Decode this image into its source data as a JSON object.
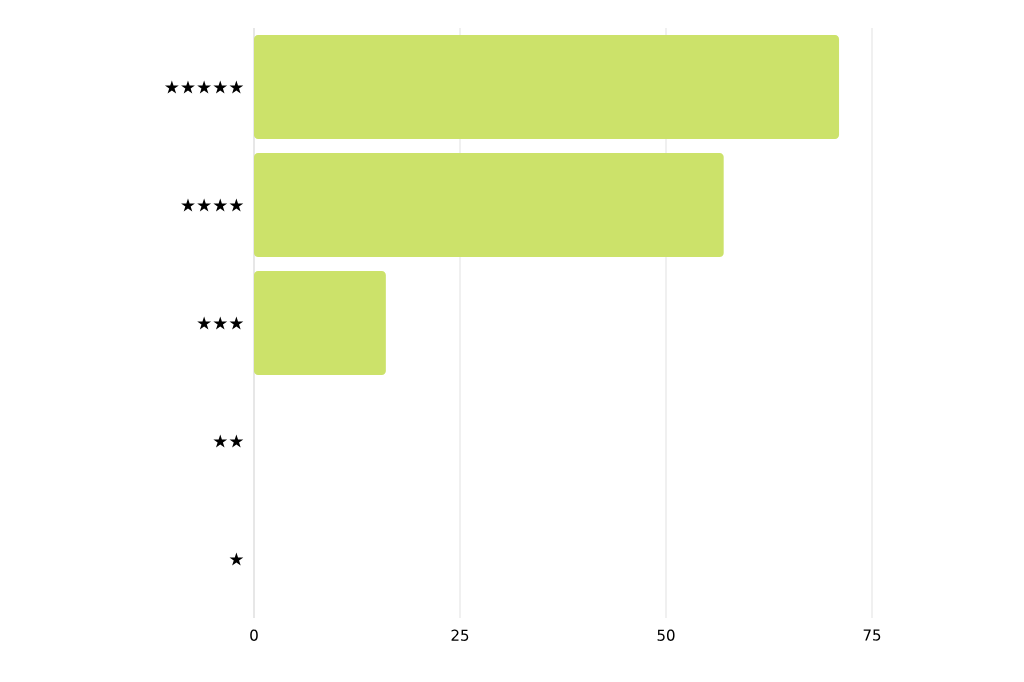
{
  "chart_data": {
    "type": "bar",
    "orientation": "horizontal",
    "categories": [
      "★★★★★",
      "★★★★",
      "★★★",
      "★★",
      "★"
    ],
    "values": [
      71,
      57,
      16,
      0,
      0
    ],
    "color": "#cce26a",
    "xlim": [
      0,
      75
    ],
    "xticks": [
      0,
      25,
      50,
      75
    ],
    "grid": "x"
  }
}
